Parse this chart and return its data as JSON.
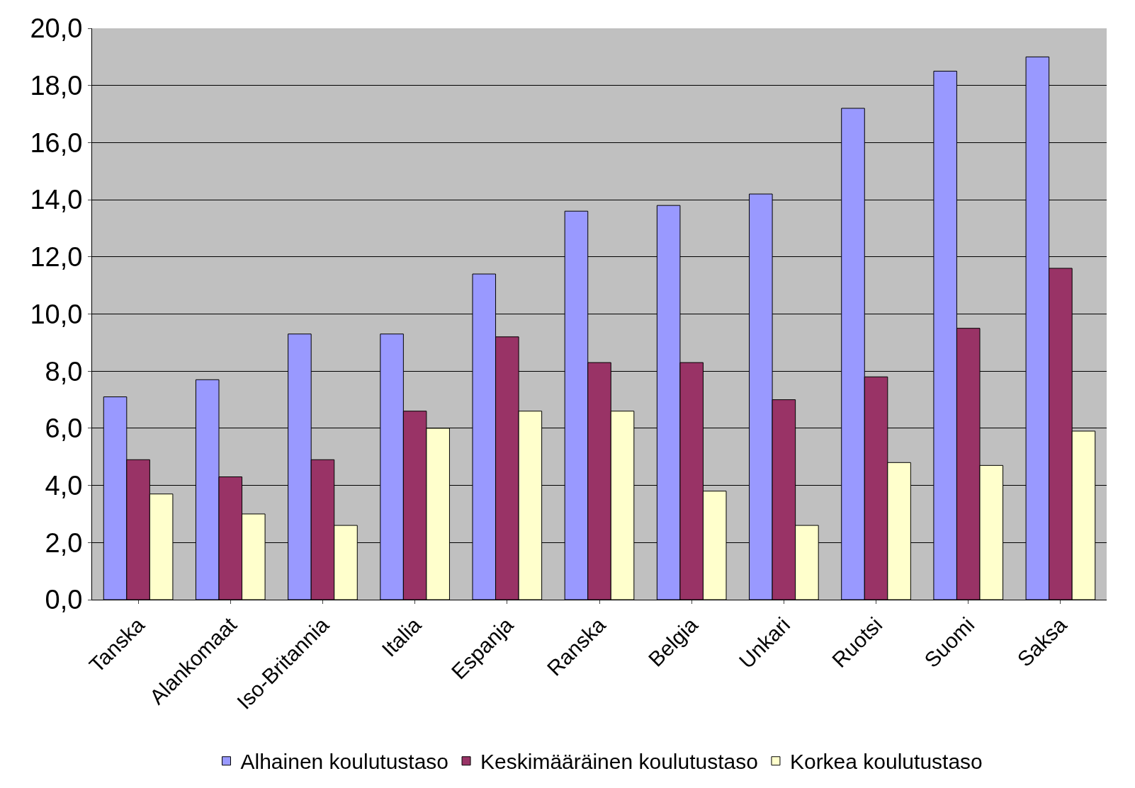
{
  "chart_data": {
    "type": "bar",
    "categories": [
      "Tanska",
      "Alankomaat",
      "Iso-Britannia",
      "Italia",
      "Espanja",
      "Ranska",
      "Belgia",
      "Unkari",
      "Ruotsi",
      "Suomi",
      "Saksa"
    ],
    "series": [
      {
        "name": "Alhainen koulutustaso",
        "color": "#9999ff",
        "values": [
          7.1,
          7.7,
          9.3,
          9.3,
          11.4,
          13.6,
          13.8,
          14.2,
          17.2,
          18.5,
          19.0
        ]
      },
      {
        "name": "Keskimääräinen koulutustaso",
        "color": "#993366",
        "values": [
          4.9,
          4.3,
          4.9,
          6.6,
          9.2,
          8.3,
          8.3,
          7.0,
          7.8,
          9.5,
          11.6
        ]
      },
      {
        "name": "Korkea koulutustaso",
        "color": "#ffffcc",
        "values": [
          3.7,
          3.0,
          2.6,
          6.0,
          6.6,
          6.6,
          3.8,
          2.6,
          4.8,
          4.7,
          5.9
        ]
      }
    ],
    "ylim": [
      0,
      20
    ],
    "yticks": [
      {
        "value": 0,
        "label": "0,0"
      },
      {
        "value": 2,
        "label": "2,0"
      },
      {
        "value": 4,
        "label": "4,0"
      },
      {
        "value": 6,
        "label": "6,0"
      },
      {
        "value": 8,
        "label": "8,0"
      },
      {
        "value": 10,
        "label": "10,0"
      },
      {
        "value": 12,
        "label": "12,0"
      },
      {
        "value": 14,
        "label": "14,0"
      },
      {
        "value": 16,
        "label": "16,0"
      },
      {
        "value": 18,
        "label": "18,0"
      },
      {
        "value": 20,
        "label": "20,0"
      }
    ],
    "grid": "y",
    "legend": "bottom"
  }
}
